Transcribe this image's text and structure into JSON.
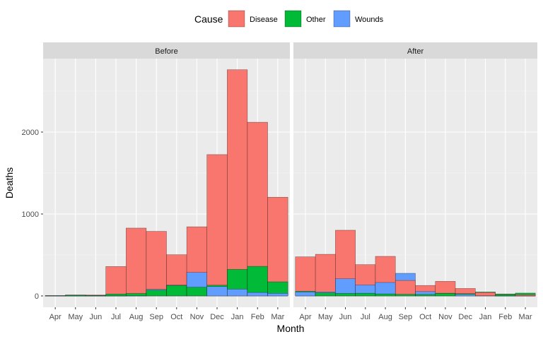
{
  "chart_data": {
    "type": "bar",
    "position": "identity (overlapping, larger values drawn first)",
    "xlabel": "Month",
    "ylabel": "Deaths",
    "ylim": [
      0,
      2900
    ],
    "yticks": [
      0,
      1000,
      2000
    ],
    "ytick_labels": [
      "0",
      "1000",
      "2000"
    ],
    "grid": true,
    "legend": {
      "title": "Cause",
      "placement": "top",
      "entries": [
        "Disease",
        "Other",
        "Wounds"
      ]
    },
    "colors": {
      "Disease": "#F8766D",
      "Other": "#00BA38",
      "Wounds": "#619CFF"
    },
    "categories": [
      "Apr",
      "May",
      "Jun",
      "Jul",
      "Aug",
      "Sep",
      "Oct",
      "Nov",
      "Dec",
      "Jan",
      "Feb",
      "Mar"
    ],
    "panels": [
      {
        "label": "Before",
        "series": [
          {
            "name": "Disease",
            "values": [
              1,
              12,
              11,
              359,
              828,
              788,
              503,
              844,
              1725,
              2761,
              2120,
              1205
            ]
          },
          {
            "name": "Wounds",
            "values": [
              0,
              0,
              0,
              0,
              1,
              81,
              132,
              287,
              114,
              83,
              42,
              32
            ]
          },
          {
            "name": "Other",
            "values": [
              5,
              9,
              6,
              23,
              30,
              70,
              128,
              106,
              131,
              324,
              361,
              172
            ]
          }
        ]
      },
      {
        "label": "After",
        "series": [
          {
            "name": "Disease",
            "values": [
              477,
              508,
              802,
              382,
              483,
              189,
              128,
              178,
              91,
              42,
              24,
              15
            ]
          },
          {
            "name": "Wounds",
            "values": [
              48,
              49,
              209,
              134,
              164,
              276,
              53,
              33,
              18,
              2,
              0,
              0
            ]
          },
          {
            "name": "Other",
            "values": [
              57,
              37,
              31,
              33,
              25,
              20,
              18,
              32,
              28,
              48,
              19,
              35
            ]
          }
        ]
      }
    ]
  }
}
